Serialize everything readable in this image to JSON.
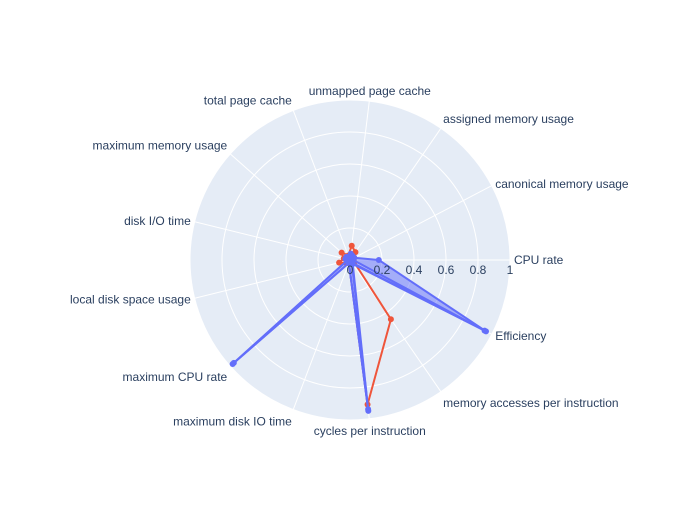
{
  "chart_data": {
    "type": "polar",
    "title": "",
    "radial_range": [
      0,
      1
    ],
    "radial_ticks": [
      0,
      0.2,
      0.4,
      0.6,
      0.8,
      1
    ],
    "radial_tick_labels": [
      "0",
      "0.2",
      "0.4",
      "0.6",
      "0.8",
      "1"
    ],
    "grid": true,
    "legend": "none",
    "categories": [
      "CPU rate",
      "canonical memory usage",
      "assigned memory usage",
      "unmapped page cache",
      "total page cache",
      "maximum memory usage",
      "disk I/O time",
      "local disk space usage",
      "maximum CPU rate",
      "maximum disk IO time",
      "cycles per instruction",
      "memory accesses per instruction",
      "Efficiency"
    ],
    "series": [
      {
        "color": "#EF553B",
        "fill": false,
        "values": [
          0.02,
          0.03,
          0.06,
          0.09,
          0.03,
          0.07,
          0.04,
          0.07,
          0.03,
          0.02,
          0.91,
          0.45,
          0.03
        ]
      },
      {
        "color": "#636EFA",
        "fill": true,
        "values": [
          0.18,
          0.03,
          0.03,
          0.04,
          0.02,
          0.03,
          0.03,
          0.02,
          0.98,
          0.02,
          0.95,
          0.03,
          0.96
        ]
      },
      {
        "color": "#636EFA",
        "fill": false,
        "values": [
          0.02,
          0.02,
          0.02,
          0.02,
          0.02,
          0.02,
          0.02,
          0.02,
          0.97,
          0.02,
          0.94,
          0.02,
          0.95
        ]
      }
    ],
    "colors": {
      "plot_background": "#E5ECF6",
      "grid": "#ffffff",
      "text": "#2a3f5f"
    }
  }
}
